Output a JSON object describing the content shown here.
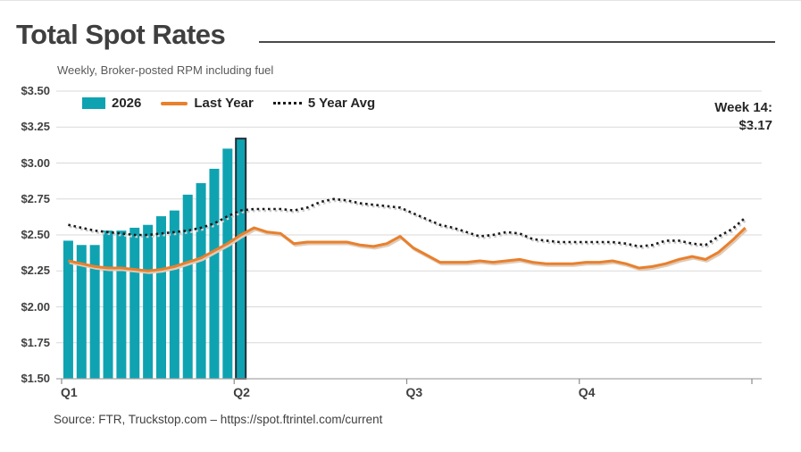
{
  "header": {
    "title": "Total Spot Rates",
    "subtitle": "Weekly, Broker-posted RPM including fuel"
  },
  "legend": [
    {
      "label": "2026",
      "swatch": "bar-swatch",
      "color": "#0fa3b1"
    },
    {
      "label": "Last Year",
      "swatch": "line-swatch",
      "color": "#e8802e"
    },
    {
      "label": "5 Year Avg",
      "swatch": "dotted-swatch",
      "color": "#1a1a1a"
    }
  ],
  "annotation": {
    "line1": "Week 14:",
    "line2": "$3.17"
  },
  "source": "Source: FTR, Truckstop.com – https://spot.ftrintel.com/current",
  "chart_data": {
    "type": "bar",
    "title": "Total Spot Rates",
    "subtitle": "Weekly, Broker-posted RPM including fuel",
    "x_unit": "week of year",
    "weeks_per_year": 52,
    "x_tick_labels": [
      "Q1",
      "Q2",
      "Q3",
      "Q4"
    ],
    "x_tick_week_boundaries": [
      0,
      13,
      26,
      39,
      52
    ],
    "ylim": [
      1.5,
      3.5
    ],
    "y_tick_values": [
      3.5,
      3.25,
      3.0,
      2.75,
      2.5,
      2.25,
      2.0,
      1.75,
      1.5
    ],
    "y_tick_labels": [
      "$3.50",
      "$3.25",
      "$3.00",
      "$2.75",
      "$2.50",
      "$2.25",
      "$2.00",
      "$1.75",
      "$1.50"
    ],
    "grid": true,
    "legend_position": "top-left",
    "series": [
      {
        "name": "2026",
        "type": "bar",
        "color": "#0fa3b1",
        "start_week": 1,
        "values": [
          2.46,
          2.43,
          2.43,
          2.53,
          2.53,
          2.55,
          2.57,
          2.63,
          2.67,
          2.78,
          2.86,
          2.96,
          3.1,
          3.17
        ]
      },
      {
        "name": "Last Year",
        "type": "line",
        "color": "#e8802e",
        "start_week": 1,
        "values": [
          2.32,
          2.3,
          2.28,
          2.27,
          2.27,
          2.26,
          2.25,
          2.26,
          2.28,
          2.31,
          2.34,
          2.39,
          2.44,
          2.5,
          2.55,
          2.52,
          2.51,
          2.44,
          2.45,
          2.45,
          2.45,
          2.45,
          2.43,
          2.42,
          2.44,
          2.49,
          2.41,
          2.36,
          2.31,
          2.31,
          2.31,
          2.32,
          2.31,
          2.32,
          2.33,
          2.31,
          2.3,
          2.3,
          2.3,
          2.31,
          2.31,
          2.32,
          2.3,
          2.27,
          2.28,
          2.3,
          2.33,
          2.35,
          2.33,
          2.38,
          2.46,
          2.55
        ]
      },
      {
        "name": "5 Year Avg",
        "type": "dotted-line",
        "color": "#1a1a1a",
        "start_week": 1,
        "values": [
          2.57,
          2.55,
          2.53,
          2.52,
          2.51,
          2.5,
          2.5,
          2.51,
          2.52,
          2.53,
          2.55,
          2.58,
          2.63,
          2.67,
          2.68,
          2.68,
          2.68,
          2.67,
          2.69,
          2.73,
          2.75,
          2.74,
          2.72,
          2.71,
          2.7,
          2.69,
          2.65,
          2.61,
          2.57,
          2.55,
          2.52,
          2.49,
          2.5,
          2.52,
          2.51,
          2.47,
          2.46,
          2.45,
          2.45,
          2.45,
          2.45,
          2.45,
          2.44,
          2.42,
          2.43,
          2.46,
          2.46,
          2.44,
          2.43,
          2.49,
          2.54,
          2.62
        ]
      }
    ],
    "highlight": {
      "series": "2026",
      "week": 14,
      "value": 3.17,
      "border_color": "#1f2d36"
    },
    "annotation": "Week 14: $3.17",
    "style": {
      "gridline_color": "#d9d9d9",
      "axis_line_color": "#a6a6a6",
      "tick_color": "#8c8c8c",
      "dotted_shadow_color": "#cccccc",
      "line_shadow_color": "#e0cbb8"
    }
  }
}
